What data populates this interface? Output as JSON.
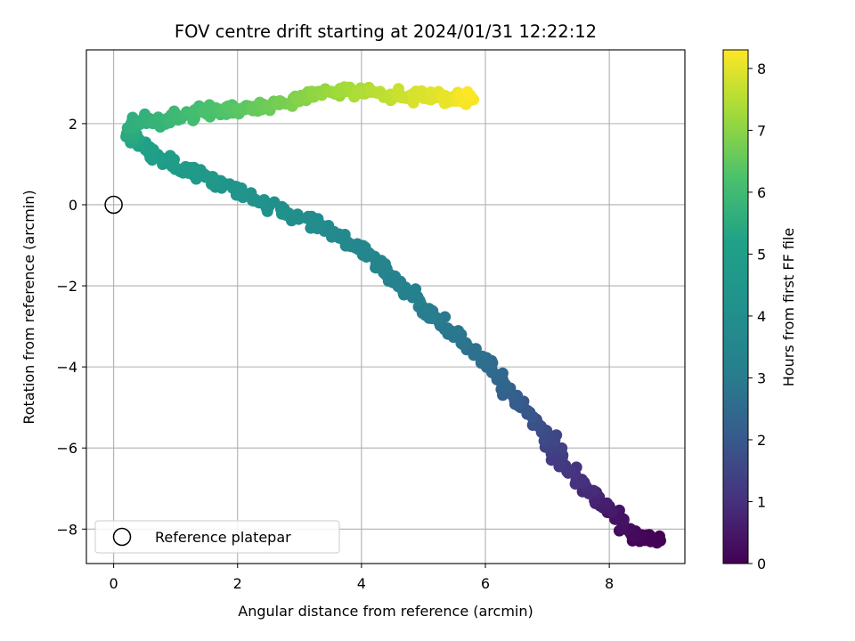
{
  "chart_data": {
    "type": "scatter",
    "title": "FOV centre drift starting at 2024/01/31 12:22:12",
    "xlabel": "Angular distance from reference (arcmin)",
    "ylabel": "Rotation from reference (arcmin)",
    "xlim": [
      -0.44,
      9.22
    ],
    "ylim": [
      -8.85,
      3.82
    ],
    "xticks": [
      0,
      2,
      4,
      6,
      8
    ],
    "xtick_labels": [
      "0",
      "2",
      "4",
      "6",
      "8"
    ],
    "yticks": [
      2,
      0,
      -2,
      -4,
      -6,
      -8
    ],
    "ytick_labels": [
      "2",
      "0",
      "−2",
      "−4",
      "−6",
      "−8"
    ],
    "grid": true,
    "legend": {
      "placement": "lower-left",
      "entries": [
        "Reference platepar"
      ]
    },
    "colorbar": {
      "label": "Hours from first FF file",
      "range": [
        0,
        8.3
      ],
      "ticks": [
        0,
        1,
        2,
        3,
        4,
        5,
        6,
        7,
        8
      ],
      "tick_labels": [
        "0",
        "1",
        "2",
        "3",
        "4",
        "5",
        "6",
        "7",
        "8"
      ],
      "colormap": "viridis"
    },
    "reference_point": {
      "label": "Reference platepar",
      "x": 0,
      "y": 0
    },
    "drift_path": {
      "description_points": [
        {
          "x": 8.8,
          "y": -8.3,
          "hours": 0.0
        },
        {
          "x": 8.4,
          "y": -8.2,
          "hours": 0.1
        },
        {
          "x": 8.0,
          "y": -7.5,
          "hours": 0.5
        },
        {
          "x": 7.6,
          "y": -7.0,
          "hours": 0.9
        },
        {
          "x": 7.2,
          "y": -6.2,
          "hours": 1.3
        },
        {
          "x": 6.9,
          "y": -5.5,
          "hours": 1.7
        },
        {
          "x": 6.5,
          "y": -4.8,
          "hours": 2.1
        },
        {
          "x": 6.1,
          "y": -4.0,
          "hours": 2.5
        },
        {
          "x": 5.6,
          "y": -3.3,
          "hours": 2.8
        },
        {
          "x": 5.0,
          "y": -2.5,
          "hours": 3.1
        },
        {
          "x": 4.5,
          "y": -1.8,
          "hours": 3.3
        },
        {
          "x": 4.1,
          "y": -1.2,
          "hours": 3.5
        },
        {
          "x": 3.4,
          "y": -0.6,
          "hours": 3.8
        },
        {
          "x": 2.6,
          "y": -0.1,
          "hours": 4.1
        },
        {
          "x": 1.9,
          "y": 0.4,
          "hours": 4.4
        },
        {
          "x": 1.3,
          "y": 0.8,
          "hours": 4.7
        },
        {
          "x": 0.7,
          "y": 1.2,
          "hours": 5.0
        },
        {
          "x": 0.3,
          "y": 1.6,
          "hours": 5.3
        },
        {
          "x": 0.3,
          "y": 2.0,
          "hours": 5.6
        },
        {
          "x": 0.8,
          "y": 2.1,
          "hours": 5.8
        },
        {
          "x": 1.4,
          "y": 2.3,
          "hours": 6.1
        },
        {
          "x": 2.0,
          "y": 2.4,
          "hours": 6.4
        },
        {
          "x": 2.6,
          "y": 2.5,
          "hours": 6.7
        },
        {
          "x": 3.2,
          "y": 2.7,
          "hours": 7.0
        },
        {
          "x": 3.8,
          "y": 2.8,
          "hours": 7.3
        },
        {
          "x": 4.4,
          "y": 2.7,
          "hours": 7.6
        },
        {
          "x": 5.0,
          "y": 2.7,
          "hours": 7.9
        },
        {
          "x": 5.5,
          "y": 2.6,
          "hours": 8.1
        },
        {
          "x": 5.8,
          "y": 2.7,
          "hours": 8.3
        }
      ]
    }
  }
}
